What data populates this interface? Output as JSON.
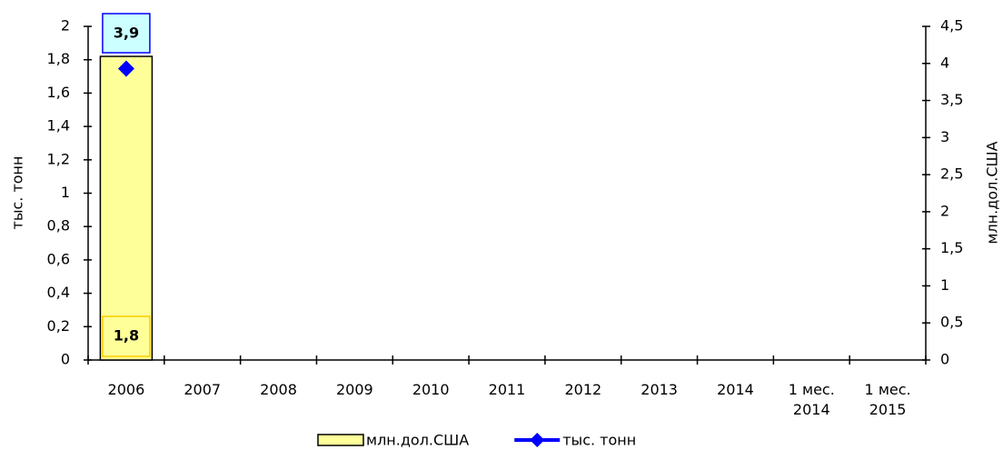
{
  "chart_data": {
    "type": "bar",
    "categories": [
      "2006",
      "2007",
      "2008",
      "2009",
      "2010",
      "2011",
      "2012",
      "2013",
      "2014",
      "1 мес. 2014",
      "1 мес. 2015"
    ],
    "ylabel": "тыс. тонн",
    "y2label": "млн.дол.США",
    "ylim": [
      0,
      2
    ],
    "yticks": [
      0,
      {
        "value": 0.2,
        "label": "0,2"
      },
      {
        "value": 0.4,
        "label": "0,4"
      },
      {
        "value": 0.6,
        "label": "0,6"
      },
      {
        "value": 0.8,
        "label": "0,8"
      },
      1,
      {
        "value": 1.2,
        "label": "1,2"
      },
      {
        "value": 1.4,
        "label": "1,4"
      },
      {
        "value": 1.6,
        "label": "1,6"
      },
      {
        "value": 1.8,
        "label": "1,8"
      },
      2
    ],
    "y2lim": [
      0,
      4.5
    ],
    "y2ticks": [
      0,
      {
        "value": 0.5,
        "label": "0,5"
      },
      1,
      {
        "value": 1.5,
        "label": "1,5"
      },
      2,
      {
        "value": 2.5,
        "label": "2,5"
      },
      3,
      {
        "value": 3.5,
        "label": "3,5"
      },
      4,
      {
        "value": 4.5,
        "label": "4,5"
      }
    ],
    "series": [
      {
        "name": "млн.дол.США",
        "type": "bar",
        "color": "#ffff99",
        "values": [
          1.82,
          null,
          null,
          null,
          null,
          null,
          null,
          null,
          null,
          null,
          null
        ],
        "value_labels": [
          "1,8",
          null,
          null,
          null,
          null,
          null,
          null,
          null,
          null,
          null,
          null
        ]
      },
      {
        "name": "тыс. тонн",
        "type": "line",
        "axis": "y2",
        "color": "#0000ff",
        "values": [
          3.93,
          null,
          null,
          null,
          null,
          null,
          null,
          null,
          null,
          null,
          null
        ],
        "value_labels": [
          "3,9",
          null,
          null,
          null,
          null,
          null,
          null,
          null,
          null,
          null,
          null
        ]
      }
    ],
    "legend": "bottom"
  }
}
